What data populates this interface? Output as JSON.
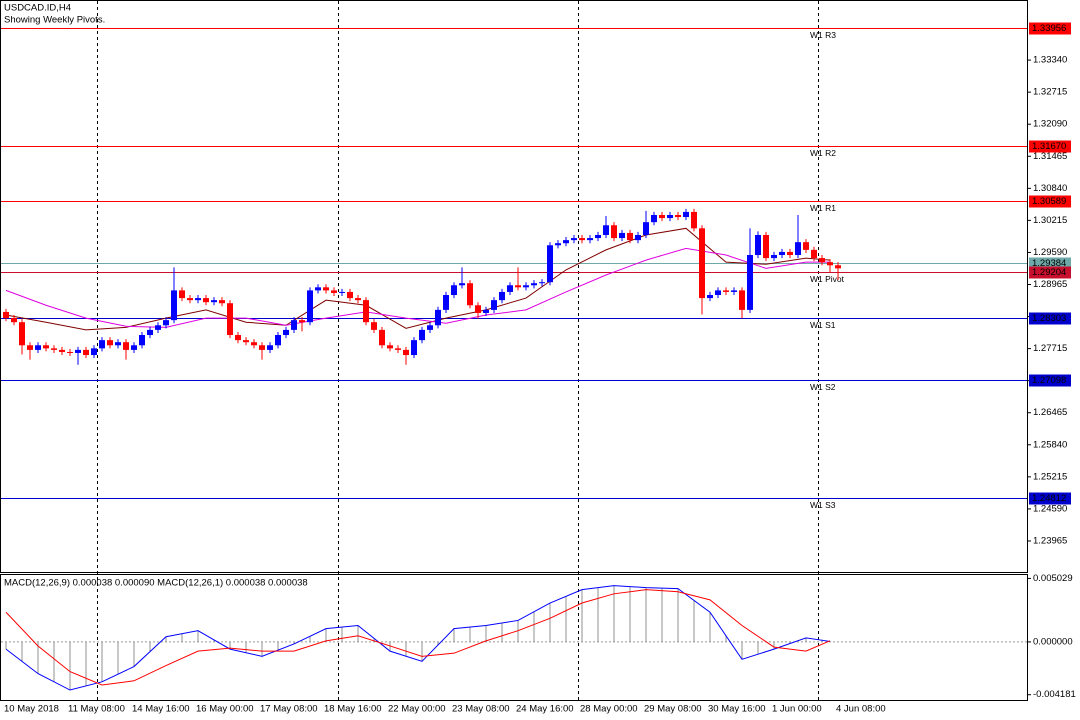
{
  "chart_data": [
    {
      "type": "candlestick",
      "title": "USDCAD.ID,H4",
      "subtitle": "Showing Weekly Pivots.",
      "categories": [
        "10 May 2018",
        null,
        null,
        null,
        null,
        null,
        null,
        null,
        "11 May 08:00",
        null,
        null,
        null,
        null,
        null,
        null,
        null,
        "14 May 16:00",
        null,
        null,
        null,
        null,
        null,
        null,
        null,
        "16 May 00:00",
        null,
        null,
        null,
        null,
        null,
        null,
        null,
        "17 May 08:00",
        null,
        null,
        null,
        null,
        null,
        null,
        null,
        "18 May 16:00",
        null,
        null,
        null,
        null,
        null,
        null,
        null,
        "22 May 00:00",
        null,
        null,
        null,
        null,
        null,
        null,
        null,
        "23 May 08:00",
        null,
        null,
        null,
        null,
        null,
        null,
        null,
        "24 May 16:00",
        null,
        null,
        null,
        null,
        null,
        null,
        null,
        "28 May 00:00",
        null,
        null,
        null,
        null,
        null,
        null,
        null,
        "29 May 08:00",
        null,
        null,
        null,
        null,
        null,
        null,
        null,
        "30 May 16:00",
        null,
        null,
        null,
        null,
        null,
        null,
        null,
        "1 Jun 00:00",
        null,
        null,
        null,
        null,
        null,
        null,
        null,
        "4 Jun 08:00"
      ],
      "candles": [
        [
          1.2843,
          1.2849,
          1.2825,
          1.2831
        ],
        [
          1.2831,
          1.2837,
          1.2817,
          1.2823
        ],
        [
          1.2823,
          1.2829,
          1.276,
          1.2778
        ],
        [
          1.2778,
          1.2784,
          1.275,
          1.2769
        ],
        [
          1.2769,
          1.2784,
          1.2763,
          1.2778
        ],
        [
          1.2778,
          1.2784,
          1.2766,
          1.2772
        ],
        [
          1.2772,
          1.2778,
          1.2763,
          1.2769
        ],
        [
          1.2769,
          1.2775,
          1.2759,
          1.2765
        ],
        [
          1.2765,
          1.2771,
          1.2757,
          1.2763
        ],
        [
          1.2763,
          1.2775,
          1.274,
          1.2769
        ],
        [
          1.2769,
          1.2775,
          1.2753,
          1.2759
        ],
        [
          1.2759,
          1.2778,
          1.2753,
          1.2772
        ],
        [
          1.2772,
          1.2794,
          1.2766,
          1.2788
        ],
        [
          1.2788,
          1.2794,
          1.2772,
          1.2778
        ],
        [
          1.2778,
          1.279,
          1.2772,
          1.2784
        ],
        [
          1.2784,
          1.279,
          1.275,
          1.2769
        ],
        [
          1.2769,
          1.2784,
          1.2763,
          1.2778
        ],
        [
          1.2778,
          1.2804,
          1.2772,
          1.2798
        ],
        [
          1.2798,
          1.2814,
          1.2792,
          1.2808
        ],
        [
          1.2808,
          1.2823,
          1.2802,
          1.2817
        ],
        [
          1.2817,
          1.2833,
          1.2811,
          1.2827
        ],
        [
          1.2827,
          1.293,
          1.2821,
          1.2885
        ],
        [
          1.2885,
          1.2891,
          1.2864,
          1.287
        ],
        [
          1.287,
          1.2876,
          1.286,
          1.2866
        ],
        [
          1.2866,
          1.2876,
          1.286,
          1.287
        ],
        [
          1.287,
          1.2876,
          1.2856,
          1.2862
        ],
        [
          1.2862,
          1.2872,
          1.2856,
          1.2866
        ],
        [
          1.2866,
          1.2872,
          1.2854,
          1.286
        ],
        [
          1.286,
          1.2866,
          1.2792,
          1.2798
        ],
        [
          1.2798,
          1.2804,
          1.2782,
          1.2788
        ],
        [
          1.2788,
          1.2794,
          1.2778,
          1.2784
        ],
        [
          1.2784,
          1.279,
          1.2772,
          1.2778
        ],
        [
          1.2778,
          1.2784,
          1.275,
          1.2769
        ],
        [
          1.2769,
          1.2784,
          1.2763,
          1.2778
        ],
        [
          1.2778,
          1.2804,
          1.2772,
          1.2798
        ],
        [
          1.2798,
          1.2814,
          1.2792,
          1.2808
        ],
        [
          1.2808,
          1.2833,
          1.2802,
          1.2827
        ],
        [
          1.2827,
          1.2833,
          1.2805,
          1.2823
        ],
        [
          1.2823,
          1.2891,
          1.2817,
          1.2885
        ],
        [
          1.2885,
          1.2897,
          1.2879,
          1.2891
        ],
        [
          1.2891,
          1.2897,
          1.2879,
          1.2885
        ],
        [
          1.2885,
          1.2891,
          1.2874,
          1.288
        ],
        [
          1.288,
          1.2888,
          1.2874,
          1.2882
        ],
        [
          1.2882,
          1.2888,
          1.2864,
          1.287
        ],
        [
          1.287,
          1.2876,
          1.286,
          1.2866
        ],
        [
          1.2866,
          1.2872,
          1.2817,
          1.2823
        ],
        [
          1.2823,
          1.2829,
          1.2802,
          1.2808
        ],
        [
          1.2808,
          1.2814,
          1.2772,
          1.2778
        ],
        [
          1.2778,
          1.2784,
          1.2766,
          1.2772
        ],
        [
          1.2772,
          1.2778,
          1.2763,
          1.2769
        ],
        [
          1.2769,
          1.2775,
          1.274,
          1.2759
        ],
        [
          1.2759,
          1.2794,
          1.2753,
          1.2788
        ],
        [
          1.2788,
          1.2814,
          1.2782,
          1.2808
        ],
        [
          1.2808,
          1.2823,
          1.2802,
          1.2817
        ],
        [
          1.2817,
          1.2853,
          1.2811,
          1.2847
        ],
        [
          1.2847,
          1.2882,
          1.2841,
          1.2876
        ],
        [
          1.2876,
          1.2901,
          1.287,
          1.2895
        ],
        [
          1.2895,
          1.293,
          1.2889,
          1.2899
        ],
        [
          1.2899,
          1.2905,
          1.285,
          1.2856
        ],
        [
          1.2856,
          1.2862,
          1.283,
          1.2841
        ],
        [
          1.2841,
          1.2853,
          1.2835,
          1.2847
        ],
        [
          1.2847,
          1.2872,
          1.2841,
          1.2866
        ],
        [
          1.2866,
          1.2888,
          1.286,
          1.2882
        ],
        [
          1.2882,
          1.2901,
          1.2876,
          1.2895
        ],
        [
          1.2895,
          1.293,
          1.2885,
          1.2891
        ],
        [
          1.2891,
          1.2901,
          1.2885,
          1.2895
        ],
        [
          1.2895,
          1.2905,
          1.2889,
          1.2899
        ],
        [
          1.2899,
          1.2907,
          1.2893,
          1.2901
        ],
        [
          1.2901,
          1.2979,
          1.2895,
          1.2973
        ],
        [
          1.2973,
          1.2983,
          1.2967,
          1.2977
        ],
        [
          1.2977,
          1.2989,
          1.2971,
          1.2983
        ],
        [
          1.2983,
          1.2993,
          1.2977,
          1.2987
        ],
        [
          1.2987,
          1.2993,
          1.2977,
          1.2983
        ],
        [
          1.2983,
          1.2993,
          1.2977,
          1.2987
        ],
        [
          1.2987,
          1.2999,
          1.2981,
          1.2993
        ],
        [
          1.2993,
          1.303,
          1.2987,
          1.3012
        ],
        [
          1.3012,
          1.3018,
          1.2981,
          1.2987
        ],
        [
          1.2987,
          1.3003,
          1.2981,
          1.2997
        ],
        [
          1.2997,
          1.3003,
          1.2977,
          1.2983
        ],
        [
          1.2983,
          1.2999,
          1.2977,
          1.2993
        ],
        [
          1.2993,
          1.304,
          1.2987,
          1.3018
        ],
        [
          1.3018,
          1.3038,
          1.3012,
          1.3032
        ],
        [
          1.3032,
          1.3038,
          1.302,
          1.3026
        ],
        [
          1.3026,
          1.3038,
          1.302,
          1.3032
        ],
        [
          1.3032,
          1.3038,
          1.3022,
          1.3028
        ],
        [
          1.3028,
          1.3044,
          1.3022,
          1.3038
        ],
        [
          1.3038,
          1.3044,
          1.3,
          1.3006
        ],
        [
          1.3006,
          1.3012,
          1.2838,
          1.287
        ],
        [
          1.287,
          1.2882,
          1.2864,
          1.2876
        ],
        [
          1.2876,
          1.2891,
          1.287,
          1.2885
        ],
        [
          1.2885,
          1.2891,
          1.2876,
          1.2882
        ],
        [
          1.2882,
          1.2891,
          1.2876,
          1.2885
        ],
        [
          1.2885,
          1.2891,
          1.2831,
          1.2847
        ],
        [
          1.2847,
          1.3006,
          1.2841,
          1.2954
        ],
        [
          1.2954,
          1.3,
          1.2948,
          1.2993
        ],
        [
          1.2993,
          1.2999,
          1.2942,
          1.2948
        ],
        [
          1.2948,
          1.296,
          1.2942,
          1.2954
        ],
        [
          1.2954,
          1.2966,
          1.2948,
          1.296
        ],
        [
          1.296,
          1.2966,
          1.2948,
          1.2954
        ],
        [
          1.2954,
          1.3032,
          1.2948,
          1.2979
        ],
        [
          1.2979,
          1.2985,
          1.2958,
          1.2964
        ],
        [
          1.2964,
          1.297,
          1.2942,
          1.2948
        ],
        [
          1.2948,
          1.2954,
          1.2934,
          1.294
        ],
        [
          1.294,
          1.2946,
          1.292,
          1.2934
        ],
        [
          1.2934,
          1.294,
          1.2905,
          1.2928
        ]
      ],
      "up_color": "#0000ff",
      "down_color": "#ff0000",
      "lines": [
        {
          "color": "#800000",
          "x": [
            0,
            5,
            10,
            15,
            20,
            25,
            30,
            35,
            40,
            45,
            50,
            55,
            60,
            65,
            70,
            75,
            80,
            85,
            90,
            95,
            100,
            103
          ],
          "values": [
            1.2837,
            1.2823,
            1.2808,
            1.2813,
            1.2831,
            1.2847,
            1.2823,
            1.2817,
            1.2866,
            1.2856,
            1.2811,
            1.2831,
            1.2847,
            1.287,
            1.2925,
            1.2964,
            1.2993,
            1.3006,
            1.294,
            1.2936,
            1.2948,
            1.2944
          ]
        },
        {
          "color": "#e000e0",
          "x": [
            0,
            5,
            10,
            15,
            20,
            25,
            30,
            35,
            40,
            45,
            50,
            55,
            60,
            65,
            70,
            75,
            80,
            85,
            90,
            95,
            100,
            103
          ],
          "values": [
            1.2885,
            1.2856,
            1.2831,
            1.2815,
            1.2813,
            1.2831,
            1.2831,
            1.2817,
            1.2831,
            1.2843,
            1.2831,
            1.2821,
            1.2837,
            1.2847,
            1.2882,
            1.2915,
            1.2944,
            1.2967,
            1.2954,
            1.2928,
            1.294,
            1.294
          ]
        }
      ],
      "levels": [
        {
          "name": "W1 R3",
          "value": 1.33956,
          "color": "#ff0000"
        },
        {
          "name": "W1 R2",
          "value": 1.3167,
          "value_label": "1.31670",
          "color": "#ff0000"
        },
        {
          "name": "W1 R1",
          "value": 1.30589,
          "color": "#ff0000"
        },
        {
          "value": 1.29384,
          "color": "#6fa8a8"
        },
        {
          "name": "W1 Pivot",
          "value": 1.29204,
          "color": "#c8102e"
        },
        {
          "name": "W1 S1",
          "value": 1.28303,
          "color": "#0000cd"
        },
        {
          "name": "W1 S2",
          "value": 1.27098,
          "color": "#0000cd"
        },
        {
          "name": "W1 S3",
          "value": 1.24812,
          "color": "#0000cd"
        }
      ],
      "ylim": [
        1.2336,
        1.3418
      ],
      "yticks": [
        {
          "value": 1.3334,
          "label": "1.33340"
        },
        1.32715,
        {
          "value": 1.3209,
          "label": "1.32090"
        },
        1.31465,
        {
          "value": 1.3084,
          "label": "1.30840"
        },
        1.30215,
        {
          "value": 1.2959,
          "label": "1.29590"
        },
        1.28965,
        {
          "value": 1.2834,
          "label": "1.28340"
        },
        1.27715,
        {
          "value": 1.2709,
          "label": "1.27090"
        },
        1.26465,
        {
          "value": 1.2584,
          "label": "1.25840"
        },
        1.25215,
        {
          "value": 1.2459,
          "label": "1.24590"
        },
        1.23965
      ]
    },
    {
      "type": "macd",
      "title": "MACD(12,26,9) 0.000038 0.000090 MACD(12,26,1) 0.000038 0.000038",
      "histogram": {
        "color": "#909090",
        "x": [
          0,
          2,
          4,
          6,
          8,
          10,
          12,
          14,
          16,
          18,
          20,
          22,
          24,
          26,
          28,
          30,
          32,
          34,
          36,
          38,
          40,
          42,
          44,
          46,
          48,
          50,
          52,
          54,
          56,
          58,
          60,
          62,
          64,
          66,
          68,
          70,
          72,
          74,
          76,
          78,
          80,
          82,
          84,
          86,
          88,
          90,
          92,
          94,
          96,
          98,
          100,
          102
        ],
        "values": [
          -0.00057,
          -0.00154,
          -0.00251,
          -0.00316,
          -0.00381,
          -0.00349,
          -0.00316,
          -0.00256,
          -0.00195,
          -0.00077,
          0.00041,
          0.00065,
          0.00089,
          0.00016,
          -0.00057,
          -0.00086,
          -0.00114,
          -0.00065,
          -0.00016,
          0.00045,
          0.00105,
          0.00118,
          0.0013,
          0.00029,
          -0.00073,
          -0.00114,
          -0.00154,
          -0.00025,
          0.00105,
          0.00118,
          0.0013,
          0.0015,
          0.0017,
          0.00239,
          0.00308,
          0.00361,
          0.00414,
          0.0043,
          0.00446,
          0.00438,
          0.0043,
          0.00426,
          0.00422,
          0.00329,
          0.00235,
          0.00049,
          -0.00138,
          -0.00098,
          -0.00057,
          -0.00013,
          0.00032,
          0.00018
        ]
      },
      "series": [
        {
          "color": "#0000ff",
          "x": [
            0,
            4,
            8,
            12,
            16,
            20,
            24,
            28,
            32,
            36,
            40,
            44,
            48,
            52,
            56,
            60,
            64,
            68,
            72,
            76,
            80,
            84,
            88,
            92,
            96,
            100,
            103
          ],
          "values": [
            -0.00057,
            -0.00251,
            -0.00381,
            -0.00316,
            -0.00195,
            0.00041,
            0.00089,
            -0.00057,
            -0.00114,
            -0.00016,
            0.00105,
            0.0013,
            -0.00073,
            -0.00154,
            0.00105,
            0.0013,
            0.0017,
            0.00308,
            0.00414,
            0.00446,
            0.0043,
            0.00422,
            0.00235,
            -0.00138,
            -0.00057,
            0.00032,
            3.8e-05
          ]
        },
        {
          "color": "#ff0000",
          "x": [
            0,
            4,
            8,
            12,
            16,
            20,
            24,
            28,
            32,
            36,
            40,
            44,
            48,
            52,
            56,
            60,
            64,
            68,
            72,
            76,
            80,
            84,
            88,
            92,
            96,
            100,
            103
          ],
          "values": [
            0.00235,
            -0.00032,
            -0.00235,
            -0.00341,
            -0.00308,
            -0.00187,
            -0.00073,
            -0.00049,
            -0.00073,
            -0.00073,
            8e-05,
            0.00049,
            -0.00032,
            -0.00114,
            -0.00089,
            8e-05,
            0.00089,
            0.00187,
            0.00308,
            0.00381,
            0.00414,
            0.00397,
            0.00333,
            0.0013,
            -0.00041,
            -0.00073,
            9e-05
          ]
        }
      ],
      "zero_line": true,
      "ylim": [
        -0.0046,
        0.0053
      ],
      "yticks": [
        0.005029,
        {
          "value": 0,
          "label": "0.000000"
        },
        -0.004181
      ]
    }
  ]
}
